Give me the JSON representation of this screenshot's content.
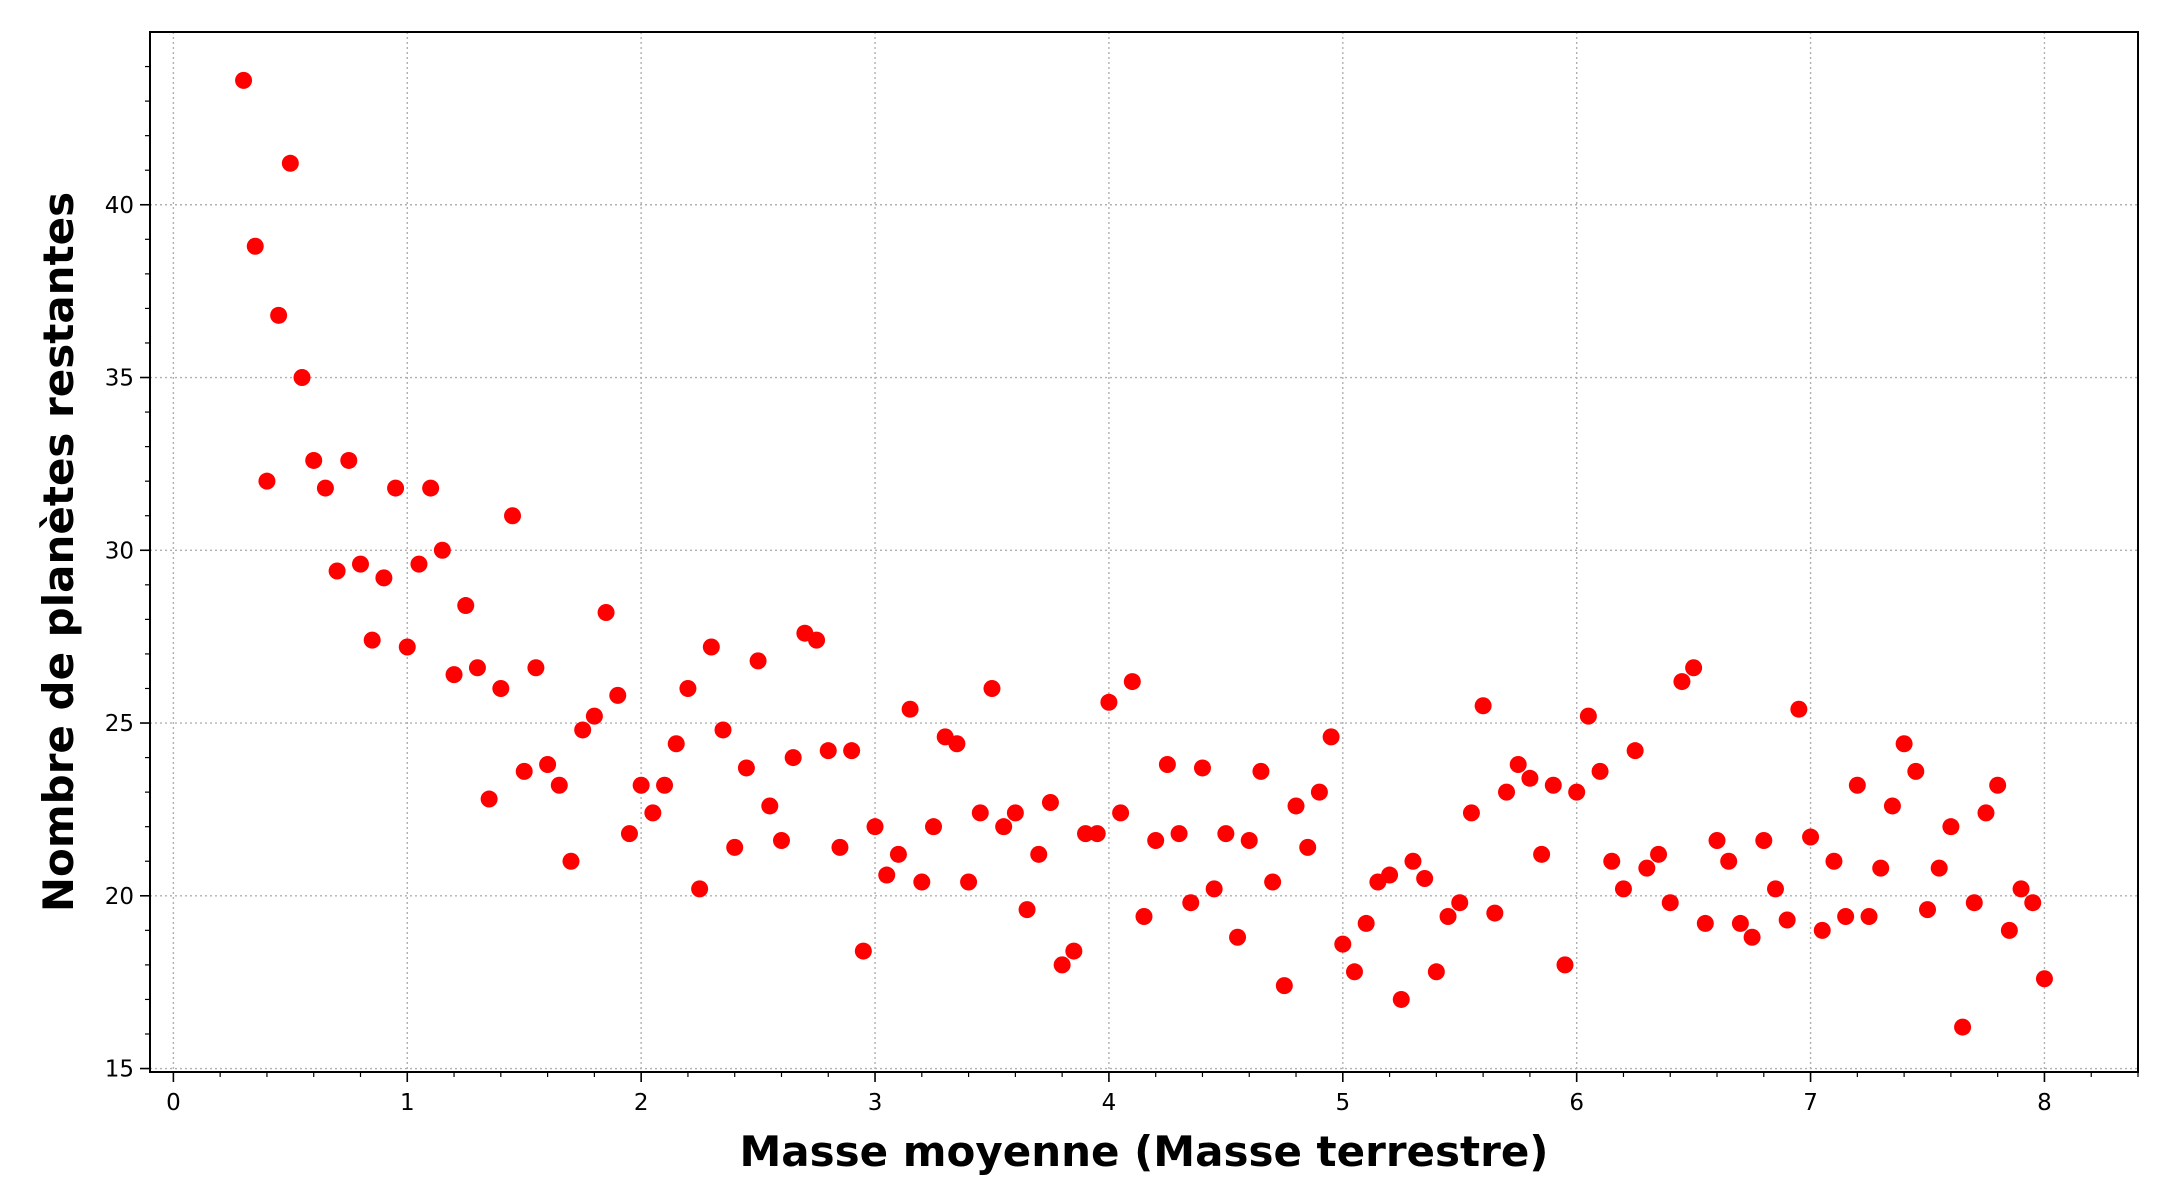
{
  "chart_data": {
    "type": "scatter",
    "title": "",
    "xlabel": "Masse moyenne (Masse terrestre)",
    "ylabel": "Nombre de planètes restantes",
    "xlim": [
      -0.1,
      8.4
    ],
    "ylim": [
      14.9,
      45.0
    ],
    "xticks": [
      0,
      1,
      2,
      3,
      4,
      5,
      6,
      7,
      8
    ],
    "xtick_labels": [
      "0",
      "1",
      "2",
      "3",
      "4",
      "5",
      "6",
      "7",
      "8"
    ],
    "yticks": [
      15,
      20,
      25,
      30,
      35,
      40
    ],
    "ytick_labels": [
      "15",
      "20",
      "25",
      "30",
      "35",
      "40"
    ],
    "x_minor_step": 0.2,
    "y_minor_step": 1,
    "grid": true,
    "marker_color": "#ff0000",
    "x": [
      0.3,
      0.35,
      0.4,
      0.45,
      0.5,
      0.55,
      0.6,
      0.65,
      0.7,
      0.75,
      0.8,
      0.85,
      0.9,
      0.95,
      1.0,
      1.05,
      1.1,
      1.15,
      1.2,
      1.25,
      1.3,
      1.35,
      1.4,
      1.45,
      1.5,
      1.55,
      1.6,
      1.65,
      1.7,
      1.75,
      1.8,
      1.85,
      1.9,
      1.95,
      2.0,
      2.05,
      2.1,
      2.15,
      2.2,
      2.25,
      2.3,
      2.35,
      2.4,
      2.45,
      2.5,
      2.55,
      2.6,
      2.65,
      2.7,
      2.75,
      2.8,
      2.85,
      2.9,
      2.95,
      3.0,
      3.05,
      3.1,
      3.15,
      3.2,
      3.25,
      3.3,
      3.35,
      3.4,
      3.45,
      3.5,
      3.55,
      3.6,
      3.65,
      3.7,
      3.75,
      3.8,
      3.85,
      3.9,
      3.95,
      4.0,
      4.05,
      4.1,
      4.15,
      4.2,
      4.25,
      4.3,
      4.35,
      4.4,
      4.45,
      4.5,
      4.55,
      4.6,
      4.65,
      4.7,
      4.75,
      4.8,
      4.85,
      4.9,
      4.95,
      5.0,
      5.05,
      5.1,
      5.15,
      5.2,
      5.25,
      5.3,
      5.35,
      5.4,
      5.45,
      5.5,
      5.55,
      5.6,
      5.65,
      5.7,
      5.75,
      5.8,
      5.85,
      5.9,
      5.95,
      6.0,
      6.05,
      6.1,
      6.15,
      6.2,
      6.25,
      6.3,
      6.35,
      6.4,
      6.45,
      6.5,
      6.55,
      6.6,
      6.65,
      6.7,
      6.75,
      6.8,
      6.85,
      6.9,
      6.95,
      7.0,
      7.05,
      7.1,
      7.15,
      7.2,
      7.25,
      7.3,
      7.35,
      7.4,
      7.45,
      7.5,
      7.55,
      7.6,
      7.65,
      7.7,
      7.75,
      7.8,
      7.85,
      7.9,
      7.95,
      8.0
    ],
    "y": [
      43.6,
      38.8,
      32.0,
      36.8,
      41.2,
      35.0,
      32.6,
      31.8,
      29.4,
      32.6,
      29.6,
      27.4,
      29.2,
      31.8,
      27.2,
      29.6,
      31.8,
      30.0,
      26.4,
      28.4,
      26.6,
      22.8,
      26.0,
      31.0,
      23.6,
      26.6,
      23.8,
      23.2,
      21.0,
      24.8,
      25.2,
      28.2,
      25.8,
      21.8,
      23.2,
      22.4,
      23.2,
      24.4,
      26.0,
      20.2,
      27.2,
      24.8,
      21.4,
      23.7,
      26.8,
      22.6,
      21.6,
      24.0,
      27.6,
      27.4,
      24.2,
      21.4,
      24.2,
      18.4,
      22.0,
      20.6,
      21.2,
      25.4,
      20.4,
      22.0,
      24.6,
      24.4,
      20.4,
      22.4,
      26.0,
      22.0,
      22.4,
      19.6,
      21.2,
      22.7,
      18.0,
      18.4,
      21.8,
      21.8,
      25.6,
      22.4,
      26.2,
      19.4,
      21.6,
      23.8,
      21.8,
      19.8,
      23.7,
      20.2,
      21.8,
      18.8,
      21.6,
      23.6,
      20.4,
      17.4,
      22.6,
      21.4,
      23.0,
      24.6,
      18.6,
      17.8,
      19.2,
      20.4,
      20.6,
      17.0,
      21.0,
      20.5,
      17.8,
      19.4,
      19.8,
      22.4,
      25.5,
      19.5,
      23.0,
      23.8,
      23.4,
      21.2,
      23.2,
      18.0,
      23.0,
      25.2,
      23.6,
      21.0,
      20.2,
      24.2,
      20.8,
      21.2,
      19.8,
      26.2,
      26.6,
      19.2,
      21.6,
      21.0,
      19.2,
      18.8,
      21.6,
      20.2,
      19.3,
      25.4,
      21.7,
      19.0,
      21.0,
      19.4,
      23.2,
      19.4,
      20.8,
      22.6,
      24.4,
      23.6,
      19.6,
      20.8,
      22.0,
      16.2,
      19.8,
      22.4,
      23.2,
      19.0,
      20.2,
      19.8,
      17.6
    ]
  }
}
